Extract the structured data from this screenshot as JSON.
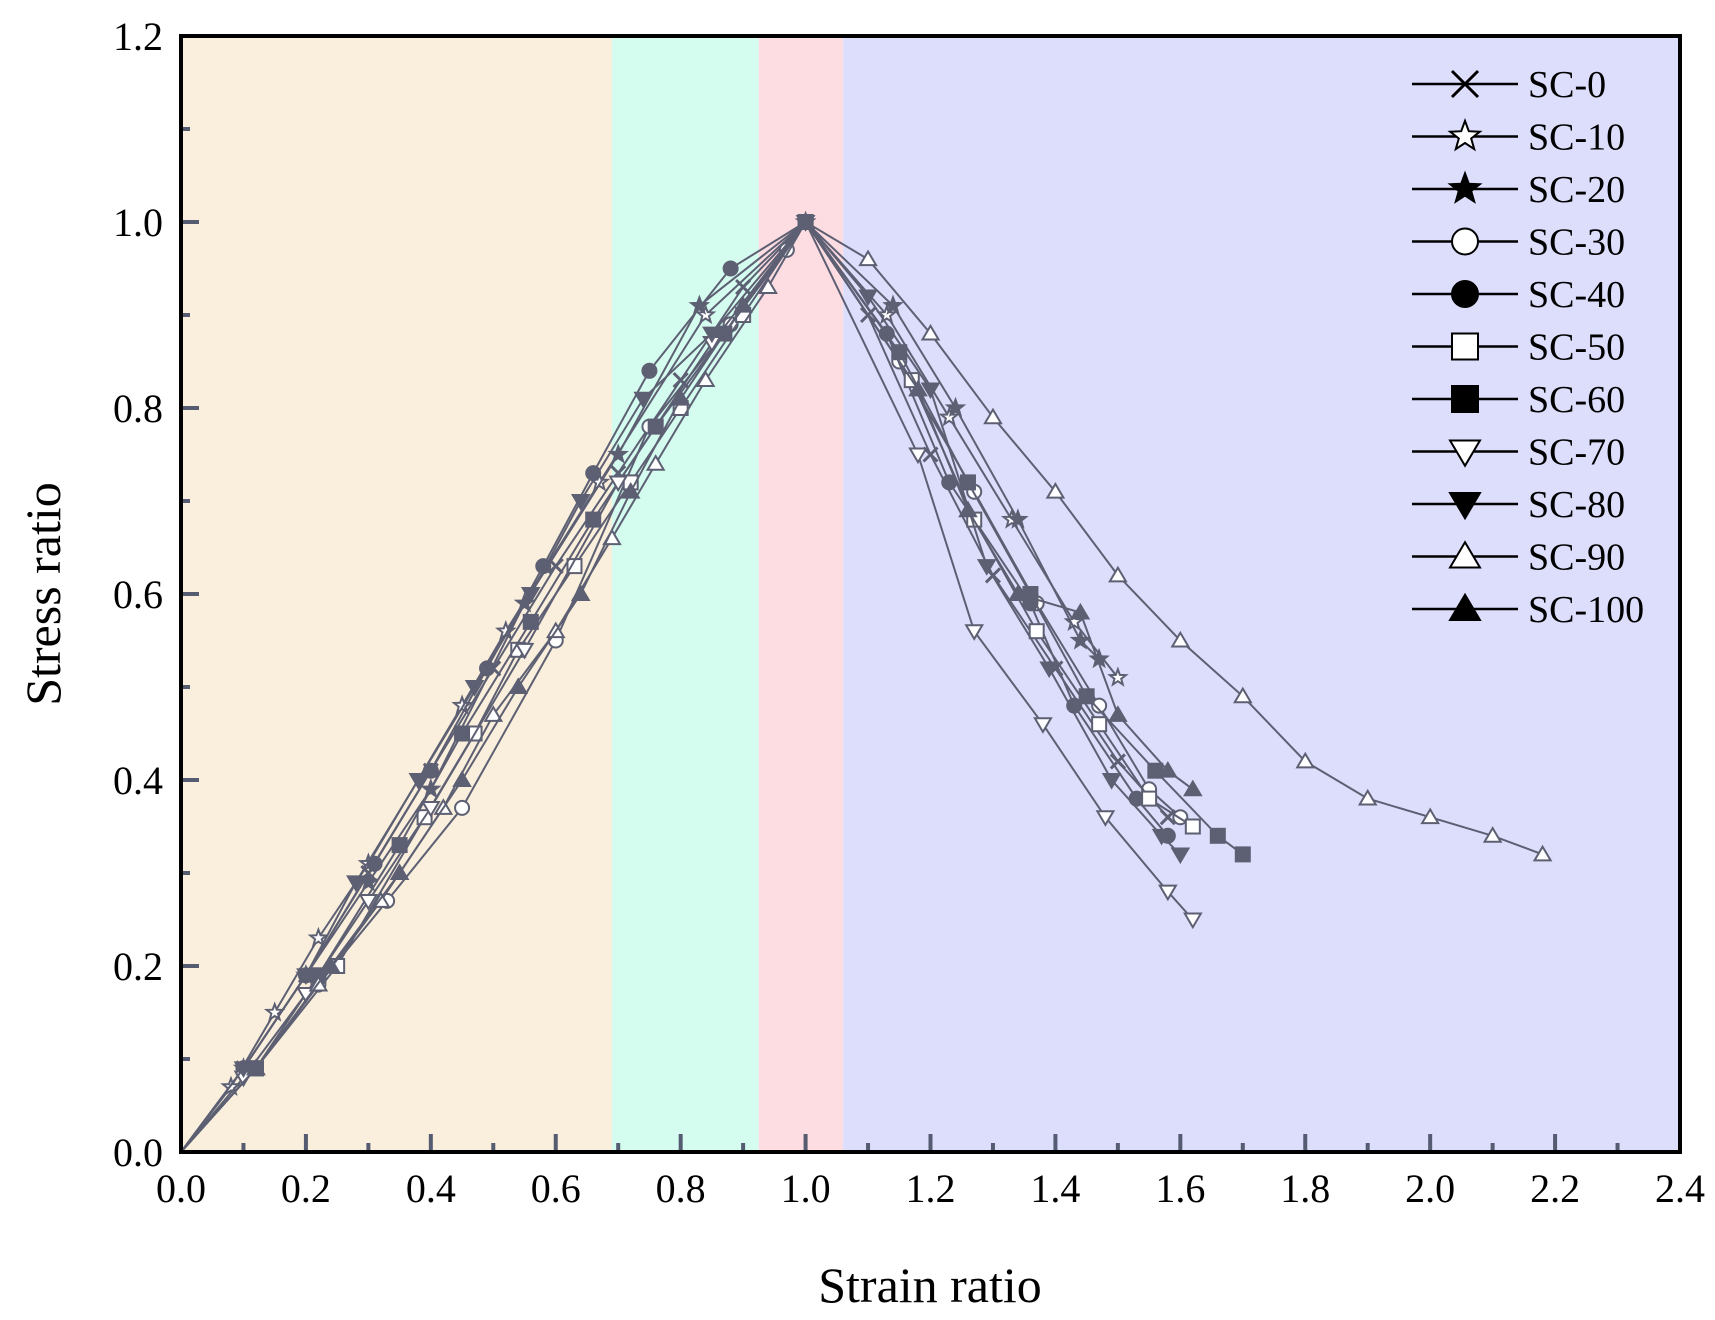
{
  "chart_data": {
    "type": "line",
    "xlabel": "Strain ratio",
    "ylabel": "Stress ratio",
    "xlim": [
      0,
      2.4
    ],
    "ylim": [
      0,
      1.2
    ],
    "xticks": [
      "0.0",
      "0.2",
      "0.4",
      "0.6",
      "0.8",
      "1.0",
      "1.2",
      "1.4",
      "1.6",
      "1.8",
      "2.0",
      "2.2",
      "2.4"
    ],
    "yticks": [
      "0.0",
      "0.2",
      "0.4",
      "0.6",
      "0.8",
      "1.0",
      "1.2"
    ],
    "regions": [
      {
        "x0": 0.0,
        "x1": 0.69,
        "color": "#f9efdc"
      },
      {
        "x0": 0.69,
        "x1": 0.925,
        "color": "#d4fcef"
      },
      {
        "x0": 0.925,
        "x1": 1.06,
        "color": "#fddde2"
      },
      {
        "x0": 1.06,
        "x1": 2.4,
        "color": "#dcdefc"
      }
    ],
    "series": [
      {
        "name": "SC-0",
        "marker": "x",
        "x": [
          0,
          0.1,
          0.2,
          0.3,
          0.4,
          0.5,
          0.6,
          0.7,
          0.8,
          0.9,
          1.0,
          1.1,
          1.2,
          1.3,
          1.4,
          1.5,
          1.58
        ],
        "y": [
          0,
          0.09,
          0.19,
          0.3,
          0.41,
          0.52,
          0.63,
          0.73,
          0.83,
          0.93,
          1.0,
          0.9,
          0.75,
          0.62,
          0.52,
          0.42,
          0.36
        ]
      },
      {
        "name": "SC-10",
        "marker": "star-open",
        "x": [
          0,
          0.08,
          0.15,
          0.22,
          0.3,
          0.45,
          0.52,
          0.67,
          0.84,
          1.0,
          1.13,
          1.23,
          1.33,
          1.43,
          1.5
        ],
        "y": [
          0,
          0.07,
          0.15,
          0.23,
          0.31,
          0.48,
          0.56,
          0.72,
          0.9,
          1.0,
          0.9,
          0.79,
          0.68,
          0.57,
          0.51
        ]
      },
      {
        "name": "SC-20",
        "marker": "star",
        "x": [
          0,
          0.1,
          0.2,
          0.3,
          0.4,
          0.55,
          0.7,
          0.83,
          1.0,
          1.14,
          1.24,
          1.34,
          1.44,
          1.47
        ],
        "y": [
          0,
          0.09,
          0.19,
          0.29,
          0.39,
          0.59,
          0.75,
          0.91,
          1.0,
          0.91,
          0.8,
          0.68,
          0.55,
          0.53
        ]
      },
      {
        "name": "SC-30",
        "marker": "circle-open",
        "x": [
          0,
          0.12,
          0.22,
          0.33,
          0.45,
          0.6,
          0.75,
          0.88,
          0.97,
          1.0,
          1.15,
          1.27,
          1.37,
          1.47,
          1.55,
          1.6
        ],
        "y": [
          0,
          0.09,
          0.18,
          0.27,
          0.37,
          0.55,
          0.78,
          0.89,
          0.97,
          1.0,
          0.85,
          0.71,
          0.59,
          0.48,
          0.39,
          0.36
        ]
      },
      {
        "name": "SC-40",
        "marker": "circle",
        "x": [
          0,
          0.1,
          0.2,
          0.31,
          0.4,
          0.49,
          0.58,
          0.66,
          0.75,
          0.88,
          1.0,
          1.13,
          1.23,
          1.36,
          1.43,
          1.53,
          1.58
        ],
        "y": [
          0,
          0.09,
          0.19,
          0.31,
          0.41,
          0.52,
          0.63,
          0.73,
          0.84,
          0.95,
          1.0,
          0.88,
          0.72,
          0.59,
          0.48,
          0.38,
          0.34
        ]
      },
      {
        "name": "SC-50",
        "marker": "square-open",
        "x": [
          0,
          0.12,
          0.25,
          0.39,
          0.47,
          0.54,
          0.63,
          0.72,
          0.8,
          0.9,
          1.0,
          1.17,
          1.27,
          1.37,
          1.47,
          1.55,
          1.62
        ],
        "y": [
          0,
          0.09,
          0.2,
          0.36,
          0.45,
          0.54,
          0.63,
          0.72,
          0.8,
          0.9,
          1.0,
          0.83,
          0.68,
          0.56,
          0.46,
          0.38,
          0.35
        ]
      },
      {
        "name": "SC-60",
        "marker": "square",
        "x": [
          0,
          0.12,
          0.22,
          0.35,
          0.45,
          0.56,
          0.66,
          0.76,
          0.87,
          1.0,
          1.15,
          1.26,
          1.36,
          1.45,
          1.56,
          1.66,
          1.7
        ],
        "y": [
          0,
          0.09,
          0.19,
          0.33,
          0.45,
          0.57,
          0.68,
          0.78,
          0.88,
          1.0,
          0.86,
          0.72,
          0.6,
          0.49,
          0.41,
          0.34,
          0.32
        ]
      },
      {
        "name": "SC-70",
        "marker": "triangle-down-open",
        "x": [
          0,
          0.1,
          0.2,
          0.3,
          0.4,
          0.55,
          0.7,
          0.85,
          1.0,
          1.18,
          1.27,
          1.38,
          1.48,
          1.58,
          1.62
        ],
        "y": [
          0,
          0.08,
          0.17,
          0.27,
          0.37,
          0.54,
          0.72,
          0.87,
          1.0,
          0.75,
          0.56,
          0.46,
          0.36,
          0.28,
          0.25
        ]
      },
      {
        "name": "SC-80",
        "marker": "triangle-down",
        "x": [
          0,
          0.1,
          0.2,
          0.28,
          0.38,
          0.47,
          0.56,
          0.64,
          0.74,
          0.85,
          1.0,
          1.1,
          1.2,
          1.29,
          1.39,
          1.49,
          1.57,
          1.6
        ],
        "y": [
          0,
          0.09,
          0.19,
          0.29,
          0.4,
          0.5,
          0.6,
          0.7,
          0.81,
          0.88,
          1.0,
          0.92,
          0.82,
          0.63,
          0.52,
          0.4,
          0.34,
          0.32
        ]
      },
      {
        "name": "SC-90",
        "marker": "triangle-open",
        "x": [
          0,
          0.12,
          0.22,
          0.32,
          0.42,
          0.5,
          0.6,
          0.69,
          0.76,
          0.84,
          0.94,
          1.0,
          1.1,
          1.2,
          1.3,
          1.4,
          1.5,
          1.6,
          1.7,
          1.8,
          1.9,
          2.0,
          2.1,
          2.18
        ],
        "y": [
          0,
          0.09,
          0.18,
          0.27,
          0.37,
          0.47,
          0.56,
          0.66,
          0.74,
          0.83,
          0.93,
          1.0,
          0.96,
          0.88,
          0.79,
          0.71,
          0.62,
          0.55,
          0.49,
          0.42,
          0.38,
          0.36,
          0.34,
          0.32
        ]
      },
      {
        "name": "SC-100",
        "marker": "triangle",
        "x": [
          0,
          0.12,
          0.24,
          0.35,
          0.45,
          0.54,
          0.64,
          0.72,
          0.8,
          0.9,
          1.0,
          1.18,
          1.26,
          1.34,
          1.44,
          1.5,
          1.58,
          1.62
        ],
        "y": [
          0,
          0.09,
          0.2,
          0.3,
          0.4,
          0.5,
          0.6,
          0.71,
          0.81,
          0.91,
          1.0,
          0.82,
          0.69,
          0.6,
          0.58,
          0.47,
          0.41,
          0.39
        ]
      }
    ]
  }
}
